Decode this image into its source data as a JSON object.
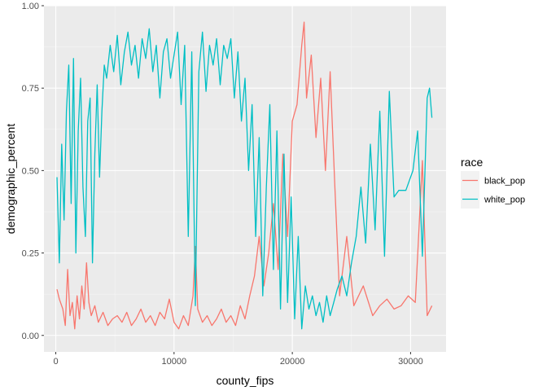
{
  "chart_data": {
    "type": "line",
    "title": "",
    "xlabel": "county_fips",
    "ylabel": "demographic_percent",
    "xlim": [
      -1000,
      33000
    ],
    "ylim": [
      -0.05,
      1.0
    ],
    "xticks": [
      0,
      10000,
      20000,
      30000
    ],
    "xtick_labels": [
      "0",
      "10000",
      "20000",
      "30000"
    ],
    "yticks": [
      0.0,
      0.25,
      0.5,
      0.75,
      1.0
    ],
    "ytick_labels": [
      "0.00",
      "0.25",
      "0.50",
      "0.75",
      "1.00"
    ],
    "grid": true,
    "legend": {
      "title": "race",
      "position": "right"
    },
    "series": [
      {
        "name": "black_pop",
        "color": "#F8766D",
        "points": [
          [
            100,
            0.14
          ],
          [
            300,
            0.11
          ],
          [
            600,
            0.08
          ],
          [
            800,
            0.03
          ],
          [
            1000,
            0.2
          ],
          [
            1200,
            0.06
          ],
          [
            1400,
            0.1
          ],
          [
            1600,
            0.02
          ],
          [
            1800,
            0.12
          ],
          [
            2000,
            0.05
          ],
          [
            2200,
            0.15
          ],
          [
            2400,
            0.08
          ],
          [
            2600,
            0.22
          ],
          [
            2800,
            0.1
          ],
          [
            3000,
            0.06
          ],
          [
            3300,
            0.09
          ],
          [
            3600,
            0.04
          ],
          [
            4000,
            0.07
          ],
          [
            4400,
            0.03
          ],
          [
            4800,
            0.05
          ],
          [
            5200,
            0.06
          ],
          [
            5600,
            0.04
          ],
          [
            6000,
            0.07
          ],
          [
            6400,
            0.03
          ],
          [
            6800,
            0.05
          ],
          [
            7200,
            0.08
          ],
          [
            7600,
            0.04
          ],
          [
            8000,
            0.06
          ],
          [
            8400,
            0.03
          ],
          [
            8800,
            0.07
          ],
          [
            9200,
            0.05
          ],
          [
            9600,
            0.11
          ],
          [
            10000,
            0.04
          ],
          [
            10400,
            0.02
          ],
          [
            10800,
            0.06
          ],
          [
            11200,
            0.03
          ],
          [
            11600,
            0.12
          ],
          [
            11800,
            0.27
          ],
          [
            12000,
            0.08
          ],
          [
            12400,
            0.04
          ],
          [
            12800,
            0.06
          ],
          [
            13200,
            0.03
          ],
          [
            13600,
            0.05
          ],
          [
            14000,
            0.08
          ],
          [
            14400,
            0.04
          ],
          [
            14800,
            0.06
          ],
          [
            15200,
            0.03
          ],
          [
            15600,
            0.09
          ],
          [
            16000,
            0.05
          ],
          [
            16400,
            0.12
          ],
          [
            16800,
            0.18
          ],
          [
            17200,
            0.3
          ],
          [
            17600,
            0.15
          ],
          [
            18000,
            0.25
          ],
          [
            18400,
            0.4
          ],
          [
            18800,
            0.2
          ],
          [
            19200,
            0.55
          ],
          [
            19600,
            0.3
          ],
          [
            20000,
            0.65
          ],
          [
            20400,
            0.7
          ],
          [
            20800,
            0.88
          ],
          [
            21000,
            0.95
          ],
          [
            21200,
            0.72
          ],
          [
            21600,
            0.85
          ],
          [
            22000,
            0.6
          ],
          [
            22400,
            0.78
          ],
          [
            22800,
            0.5
          ],
          [
            23200,
            0.8
          ],
          [
            23600,
            0.45
          ],
          [
            24000,
            0.12
          ],
          [
            24600,
            0.3
          ],
          [
            25200,
            0.09
          ],
          [
            26000,
            0.15
          ],
          [
            26800,
            0.06
          ],
          [
            27400,
            0.09
          ],
          [
            28000,
            0.11
          ],
          [
            28600,
            0.08
          ],
          [
            29200,
            0.09
          ],
          [
            29800,
            0.12
          ],
          [
            30400,
            0.1
          ],
          [
            31000,
            0.53
          ],
          [
            31400,
            0.06
          ],
          [
            31800,
            0.09
          ]
        ]
      },
      {
        "name": "white_pop",
        "color": "#00BFC4",
        "points": [
          [
            100,
            0.48
          ],
          [
            300,
            0.22
          ],
          [
            500,
            0.58
          ],
          [
            700,
            0.35
          ],
          [
            900,
            0.68
          ],
          [
            1100,
            0.82
          ],
          [
            1300,
            0.4
          ],
          [
            1500,
            0.84
          ],
          [
            1700,
            0.25
          ],
          [
            1900,
            0.62
          ],
          [
            2100,
            0.78
          ],
          [
            2300,
            0.45
          ],
          [
            2500,
            0.3
          ],
          [
            2700,
            0.65
          ],
          [
            2900,
            0.72
          ],
          [
            3100,
            0.22
          ],
          [
            3300,
            0.55
          ],
          [
            3500,
            0.76
          ],
          [
            3700,
            0.48
          ],
          [
            3900,
            0.68
          ],
          [
            4100,
            0.82
          ],
          [
            4300,
            0.78
          ],
          [
            4600,
            0.88
          ],
          [
            4900,
            0.8
          ],
          [
            5200,
            0.91
          ],
          [
            5500,
            0.76
          ],
          [
            5800,
            0.86
          ],
          [
            6100,
            0.92
          ],
          [
            6400,
            0.82
          ],
          [
            6700,
            0.88
          ],
          [
            7000,
            0.78
          ],
          [
            7300,
            0.9
          ],
          [
            7600,
            0.84
          ],
          [
            7900,
            0.93
          ],
          [
            8200,
            0.8
          ],
          [
            8500,
            0.88
          ],
          [
            8800,
            0.72
          ],
          [
            9100,
            0.86
          ],
          [
            9400,
            0.9
          ],
          [
            9700,
            0.78
          ],
          [
            10000,
            0.85
          ],
          [
            10300,
            0.92
          ],
          [
            10600,
            0.7
          ],
          [
            10900,
            0.88
          ],
          [
            11200,
            0.3
          ],
          [
            11500,
            0.86
          ],
          [
            11800,
            0.09
          ],
          [
            12100,
            0.8
          ],
          [
            12400,
            0.92
          ],
          [
            12700,
            0.74
          ],
          [
            13000,
            0.88
          ],
          [
            13300,
            0.82
          ],
          [
            13600,
            0.9
          ],
          [
            13900,
            0.76
          ],
          [
            14200,
            0.88
          ],
          [
            14500,
            0.84
          ],
          [
            14800,
            0.9
          ],
          [
            15100,
            0.72
          ],
          [
            15400,
            0.86
          ],
          [
            15700,
            0.65
          ],
          [
            16000,
            0.78
          ],
          [
            16300,
            0.5
          ],
          [
            16600,
            0.7
          ],
          [
            16900,
            0.3
          ],
          [
            17200,
            0.6
          ],
          [
            17500,
            0.12
          ],
          [
            17800,
            0.45
          ],
          [
            18100,
            0.7
          ],
          [
            18400,
            0.2
          ],
          [
            18700,
            0.62
          ],
          [
            19000,
            0.08
          ],
          [
            19300,
            0.55
          ],
          [
            19600,
            0.1
          ],
          [
            19900,
            0.42
          ],
          [
            20200,
            0.05
          ],
          [
            20500,
            0.3
          ],
          [
            20800,
            0.02
          ],
          [
            21100,
            0.15
          ],
          [
            21400,
            0.08
          ],
          [
            21700,
            0.12
          ],
          [
            22000,
            0.06
          ],
          [
            22300,
            0.1
          ],
          [
            22600,
            0.04
          ],
          [
            22900,
            0.12
          ],
          [
            23200,
            0.06
          ],
          [
            23500,
            0.1
          ],
          [
            23800,
            0.14
          ],
          [
            24200,
            0.18
          ],
          [
            24600,
            0.12
          ],
          [
            25000,
            0.22
          ],
          [
            25400,
            0.3
          ],
          [
            25800,
            0.45
          ],
          [
            26200,
            0.28
          ],
          [
            26600,
            0.58
          ],
          [
            27000,
            0.32
          ],
          [
            27400,
            0.68
          ],
          [
            27800,
            0.24
          ],
          [
            28200,
            0.74
          ],
          [
            28600,
            0.42
          ],
          [
            29000,
            0.44
          ],
          [
            29600,
            0.44
          ],
          [
            30200,
            0.5
          ],
          [
            30600,
            0.62
          ],
          [
            31000,
            0.24
          ],
          [
            31400,
            0.72
          ],
          [
            31600,
            0.75
          ],
          [
            31800,
            0.66
          ]
        ]
      }
    ]
  }
}
